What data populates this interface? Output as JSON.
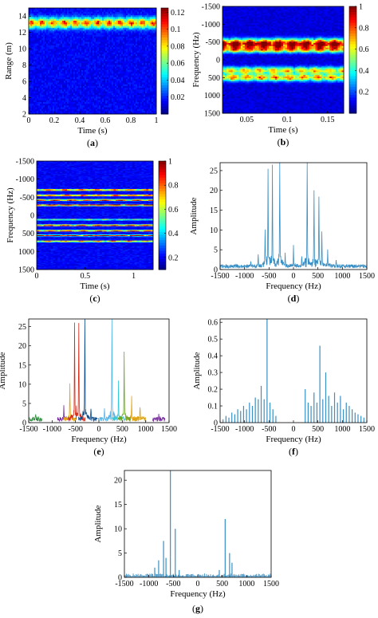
{
  "colors": {
    "spectrum_blue": "#3a8fc4",
    "parula_low": "#0b0bb0",
    "dark_blue": "#0c4a8a",
    "red": "#d62c1a",
    "gold": "#e8a50a",
    "purple": "#7a2ea0",
    "green": "#6aa629",
    "light_blue": "#56b4e6",
    "cyan": "#38c8d8"
  },
  "chart_data": [
    {
      "id": "a",
      "type": "heatmap",
      "label_parts": [
        "(",
        "a",
        ")"
      ],
      "xlabel": "Time (s)",
      "ylabel": "Range (m)",
      "xlim": [
        0,
        1
      ],
      "ylim": [
        2,
        15
      ],
      "xticks": [
        0,
        0.2,
        0.4,
        0.6,
        0.8,
        1
      ],
      "xtick_labels": [
        "0",
        "0.2",
        "0.4",
        "0.6",
        "0.8",
        "1"
      ],
      "yticks": [
        2,
        4,
        6,
        8,
        10,
        12,
        14
      ],
      "ytick_labels": [
        "2",
        "4",
        "6",
        "8",
        "10",
        "12",
        "14"
      ],
      "colorbar": {
        "range": [
          0,
          0.125
        ],
        "ticks": [
          0.02,
          0.04,
          0.06,
          0.08,
          0.1,
          0.12
        ],
        "labels": [
          "0.02",
          "0.04",
          "0.06",
          "0.08",
          "0.1",
          "0.12"
        ]
      },
      "bands": [
        {
          "center": 13.2,
          "width": 0.9,
          "level": 0.07,
          "axis": "y"
        }
      ]
    },
    {
      "id": "b",
      "type": "heatmap",
      "label_parts": [
        "(",
        "b",
        ")"
      ],
      "xlabel": "Time (s)",
      "ylabel": "Frequency (Hz)",
      "xlim": [
        0.02,
        0.17
      ],
      "ylim": [
        -1500,
        1500
      ],
      "y_reversed": true,
      "xticks": [
        0.05,
        0.1,
        0.15
      ],
      "xtick_labels": [
        "0.05",
        "0.1",
        "0.15"
      ],
      "yticks": [
        -1500,
        -1000,
        -500,
        0,
        500,
        1000,
        1500
      ],
      "ytick_labels": [
        "-1500",
        "-1000",
        "-500",
        "0",
        "500",
        "1000",
        "1500"
      ],
      "colorbar": {
        "range": [
          0,
          1
        ],
        "ticks": [
          0.2,
          0.4,
          0.6,
          0.8,
          1
        ],
        "labels": [
          "0.2",
          "0.4",
          "0.6",
          "0.8",
          "1"
        ]
      },
      "bands": [
        {
          "center": -450,
          "width": 180,
          "level": 0.85,
          "axis": "y"
        },
        {
          "center": -280,
          "width": 120,
          "level": 0.5,
          "axis": "y"
        },
        {
          "center": 300,
          "width": 140,
          "level": 0.5,
          "axis": "y"
        },
        {
          "center": 500,
          "width": 140,
          "level": 0.55,
          "axis": "y"
        }
      ]
    },
    {
      "id": "c",
      "type": "heatmap",
      "label_parts": [
        "(",
        "c",
        ")"
      ],
      "xlabel": "Time (s)",
      "ylabel": "Frequency (Hz)",
      "xlim": [
        0,
        1.2
      ],
      "ylim": [
        -1500,
        1500
      ],
      "y_reversed": true,
      "xticks": [
        0,
        0.5,
        1
      ],
      "xtick_labels": [
        "0",
        "0.5",
        "1"
      ],
      "yticks": [
        -1500,
        -1000,
        -500,
        0,
        500,
        1000,
        1500
      ],
      "ytick_labels": [
        "-1500",
        "-1000",
        "-500",
        "0",
        "500",
        "1000",
        "1500"
      ],
      "colorbar": {
        "range": [
          0.1,
          1
        ],
        "ticks": [
          0.2,
          0.4,
          0.6,
          0.8,
          1
        ],
        "labels": [
          "0.2",
          "0.4",
          "0.6",
          "0.8",
          "1"
        ]
      },
      "bands": [
        {
          "center": -700,
          "width": 30,
          "level": 0.7,
          "axis": "y"
        },
        {
          "center": -550,
          "width": 30,
          "level": 0.75,
          "axis": "y"
        },
        {
          "center": -420,
          "width": 30,
          "level": 0.7,
          "axis": "y"
        },
        {
          "center": -280,
          "width": 30,
          "level": 0.8,
          "axis": "y"
        },
        {
          "center": 120,
          "width": 25,
          "level": 0.4,
          "axis": "y"
        },
        {
          "center": 280,
          "width": 30,
          "level": 0.75,
          "axis": "y"
        },
        {
          "center": 430,
          "width": 30,
          "level": 0.7,
          "axis": "y"
        },
        {
          "center": 560,
          "width": 30,
          "level": 0.75,
          "axis": "y"
        },
        {
          "center": 720,
          "width": 30,
          "level": 0.6,
          "axis": "y"
        }
      ]
    },
    {
      "id": "d",
      "type": "line",
      "label_parts": [
        "(",
        "d",
        ")"
      ],
      "xlabel": "Frequency (Hz)",
      "ylabel": "Amplitude",
      "xlim": [
        -1500,
        1500
      ],
      "ylim": [
        0,
        27
      ],
      "xticks": [
        -1500,
        -1000,
        -500,
        0,
        500,
        1000,
        1500
      ],
      "xtick_labels": [
        "-1500",
        "-1000",
        "-500",
        "0",
        "500",
        "1000",
        "1500"
      ],
      "yticks": [
        0,
        5,
        10,
        15,
        20,
        25
      ],
      "ytick_labels": [
        "0",
        "5",
        "10",
        "15",
        "20",
        "25"
      ],
      "peaks": [
        {
          "x": -870,
          "y": 1.5
        },
        {
          "x": -720,
          "y": 2.5
        },
        {
          "x": -580,
          "y": 8
        },
        {
          "x": -520,
          "y": 23
        },
        {
          "x": -430,
          "y": 23
        },
        {
          "x": -280,
          "y": 27
        },
        {
          "x": -170,
          "y": 3
        },
        {
          "x": 0,
          "y": 4.5
        },
        {
          "x": 170,
          "y": 2.5
        },
        {
          "x": 280,
          "y": 26
        },
        {
          "x": 420,
          "y": 17.5
        },
        {
          "x": 520,
          "y": 16
        },
        {
          "x": 580,
          "y": 8
        },
        {
          "x": 700,
          "y": 4
        },
        {
          "x": 870,
          "y": 1.5
        }
      ]
    },
    {
      "id": "e",
      "type": "line",
      "label_parts": [
        "(",
        "e",
        ")"
      ],
      "xlabel": "Frequency (Hz)",
      "ylabel": "Amplitude",
      "xlim": [
        -1500,
        1500
      ],
      "ylim": [
        0,
        27
      ],
      "xticks": [
        -1500,
        -1000,
        -500,
        0,
        500,
        1000,
        1500
      ],
      "xtick_labels": [
        "-1500",
        "-1000",
        "-500",
        "0",
        "500",
        "1000",
        "1500"
      ],
      "yticks": [
        0,
        5,
        10,
        15,
        20,
        25
      ],
      "ytick_labels": [
        "0",
        "5",
        "10",
        "15",
        "20",
        "25"
      ],
      "series": [
        {
          "color": "#2f8f3e",
          "peaks": [
            {
              "x": -1350,
              "y": 1.2
            }
          ]
        },
        {
          "color": "#7a2ea0",
          "peaks": [
            {
              "x": -750,
              "y": 3
            },
            {
              "x": 1280,
              "y": 1.2
            }
          ]
        },
        {
          "color": "#e8a50a",
          "peaks": [
            {
              "x": -620,
              "y": 9
            },
            {
              "x": 700,
              "y": 5
            }
          ]
        },
        {
          "color": "#d62c1a",
          "peaks": [
            {
              "x": -520,
              "y": 23
            },
            {
              "x": -430,
              "y": 23
            }
          ]
        },
        {
          "color": "#0c4a8a",
          "peaks": [
            {
              "x": -300,
              "y": 27
            },
            {
              "x": -170,
              "y": 3
            }
          ]
        },
        {
          "color": "#56b4e6",
          "peaks": [
            {
              "x": 120,
              "y": 3
            },
            {
              "x": 280,
              "y": 26
            }
          ]
        },
        {
          "color": "#38c8d8",
          "peaks": [
            {
              "x": 420,
              "y": 10
            }
          ]
        },
        {
          "color": "#6aa629",
          "peaks": [
            {
              "x": 540,
              "y": 15.5
            }
          ]
        },
        {
          "color": "#d9a21b",
          "peaks": [
            {
              "x": 880,
              "y": 3.5
            }
          ]
        }
      ]
    },
    {
      "id": "f",
      "type": "bar",
      "label_parts": [
        "(",
        "f",
        ")"
      ],
      "xlabel": "Frequency (Hz)",
      "ylabel": "Amplitude",
      "xlim": [
        -1500,
        1500
      ],
      "ylim": [
        0,
        0.62
      ],
      "xticks": [
        -1500,
        -1000,
        -500,
        0,
        500,
        1000,
        1500
      ],
      "xtick_labels": [
        "-1500",
        "-1000",
        "-500",
        "0",
        "500",
        "1000",
        "1500"
      ],
      "yticks": [
        0,
        0.1,
        0.2,
        0.3,
        0.4,
        0.5,
        0.6
      ],
      "ytick_labels": [
        "0",
        "0.1",
        "0.2",
        "0.3",
        "0.4",
        "0.5",
        "0.6"
      ],
      "x": [
        -1440,
        -1380,
        -1320,
        -1260,
        -1200,
        -1140,
        -1080,
        -1020,
        -960,
        -900,
        -840,
        -780,
        -720,
        -660,
        -600,
        -540,
        -480,
        -420,
        -360,
        240,
        300,
        360,
        420,
        480,
        540,
        600,
        660,
        720,
        780,
        840,
        900,
        960,
        1020,
        1080,
        1140,
        1200,
        1260,
        1320,
        1380,
        1440
      ],
      "values": [
        0.02,
        0.04,
        0.03,
        0.06,
        0.05,
        0.08,
        0.07,
        0.1,
        0.08,
        0.12,
        0.1,
        0.15,
        0.14,
        0.22,
        0.14,
        0.62,
        0.12,
        0.08,
        0.04,
        0.2,
        0.12,
        0.1,
        0.18,
        0.12,
        0.46,
        0.14,
        0.3,
        0.16,
        0.1,
        0.18,
        0.12,
        0.16,
        0.08,
        0.12,
        0.1,
        0.08,
        0.06,
        0.05,
        0.04,
        0.03
      ]
    },
    {
      "id": "g",
      "type": "bar",
      "label_parts": [
        "(",
        "g",
        ")"
      ],
      "xlabel": "Frequency (Hz)",
      "ylabel": "Amplitude",
      "xlim": [
        -1500,
        1500
      ],
      "ylim": [
        0,
        22
      ],
      "xticks": [
        -1500,
        -1000,
        -500,
        0,
        500,
        1000,
        1500
      ],
      "xtick_labels": [
        "-1500",
        "-1000",
        "-500",
        "0",
        "500",
        "1000",
        "1500"
      ],
      "yticks": [
        0,
        5,
        10,
        15,
        20
      ],
      "ytick_labels": [
        "0",
        "5",
        "10",
        "15",
        "20"
      ],
      "x": [
        -880,
        -800,
        -700,
        -650,
        -560,
        -460,
        -380,
        440,
        560,
        650,
        700
      ],
      "values": [
        2,
        3.5,
        7.5,
        4,
        22,
        10,
        1.5,
        1.5,
        12,
        5,
        3
      ]
    }
  ]
}
